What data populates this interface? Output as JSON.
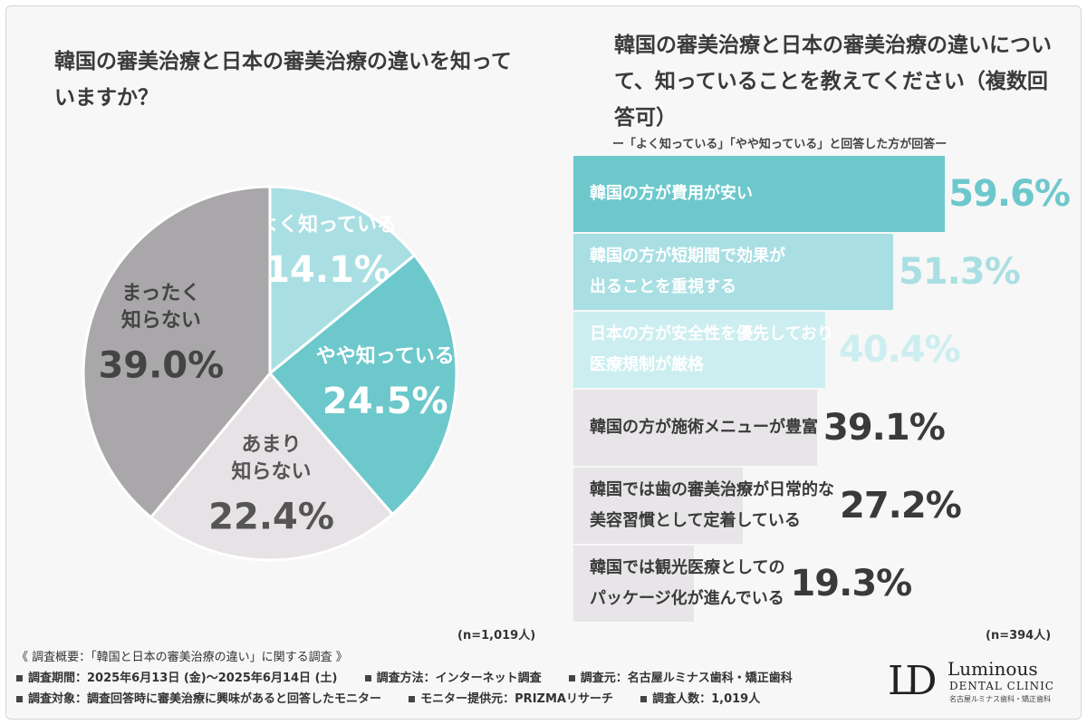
{
  "left_title": "韓国の審美治療と日本の審美治療の違いを知っていますか？",
  "right_title": "韓国の審美治療と日本の審美治療の違いについて、知っていることを教えてください（複数回答可）",
  "right_subtitle": "ー「よく知っている」「やや知っている」と回答した方が回答ー",
  "left_n": "(n=1,019人)",
  "right_n": "(n=394人)",
  "chart_data": [
    {
      "type": "pie",
      "title": "韓国の審美治療と日本の審美治療の違いを知っていますか？",
      "slices": [
        {
          "label": "よく知っている",
          "value": 14.1,
          "value_label": "14.1%",
          "color": "#a9dfe3",
          "text_color": "#ffffff"
        },
        {
          "label": "やや知っている",
          "value": 24.5,
          "value_label": "24.5%",
          "color": "#6dc8cc",
          "text_color": "#ffffff"
        },
        {
          "label": "あまり\n知らない",
          "value": 22.4,
          "value_label": "22.4%",
          "color": "#e6e2e6",
          "text_color": "#555555"
        },
        {
          "label": "まったく\n知らない",
          "value": 39.0,
          "value_label": "39.0%",
          "color": "#a9a7a9",
          "text_color": "#444444"
        }
      ],
      "n": "(n=1,019人)"
    },
    {
      "type": "bar",
      "title": "韓国の審美治療と日本の審美治療の違いについて、知っていることを教えてください（複数回答可）",
      "orientation": "horizontal",
      "xlim": [
        0,
        59.6
      ],
      "bars": [
        {
          "label": "韓国の方が費用が安い",
          "value": 59.6,
          "value_label": "59.6%",
          "color": "#6dc8cc",
          "label_color": "#ffffff",
          "value_color": "#6dc8cc"
        },
        {
          "label": "韓国の方が短期間で効果が\n出ることを重視する",
          "value": 51.3,
          "value_label": "51.3%",
          "color": "#a9dfe3",
          "label_color": "#ffffff",
          "value_color": "#a9dfe3"
        },
        {
          "label": "日本の方が安全性を優先しており\n医療規制が厳格",
          "value": 40.4,
          "value_label": "40.4%",
          "color": "#cdeef0",
          "label_color": "#ffffff",
          "value_color": "#cdeef0"
        },
        {
          "label": "韓国の方が施術メニューが豊富",
          "value": 39.1,
          "value_label": "39.1%",
          "color": "#e8e5e8",
          "label_color": "#3a3a3a",
          "value_color": "#3a3a3a"
        },
        {
          "label": "韓国では歯の審美治療が日常的な\n美容習慣として定着している",
          "value": 27.2,
          "value_label": "27.2%",
          "color": "#e8e5e8",
          "label_color": "#3a3a3a",
          "value_color": "#3a3a3a"
        },
        {
          "label": "韓国では観光医療としての\nパッケージ化が進んでいる",
          "value": 19.3,
          "value_label": "19.3%",
          "color": "#e8e5e8",
          "label_color": "#3a3a3a",
          "value_color": "#3a3a3a"
        }
      ],
      "n": "(n=394人)"
    }
  ],
  "footer": {
    "summary": "《 調査概要：「韓国と日本の審美治療の違い」に関する調査 》",
    "period": "調査期間：2025年6月13日 (金)〜2025年6月14日 (土)",
    "method": "調査方法：インターネット調査",
    "source": "調査元：名古屋ルミナス歯科・矯正歯科",
    "target": "調査対象：調査回答時に審美治療に興味があると回答したモニター",
    "provider": "モニター提供元：PRIZMAリサーチ",
    "count": "調査人数：1,019人"
  },
  "logo": {
    "mark": "LD",
    "name": "Luminous",
    "sub": "DENTAL CLINIC",
    "jp": "名古屋ルミナス歯科・矯正歯科"
  }
}
